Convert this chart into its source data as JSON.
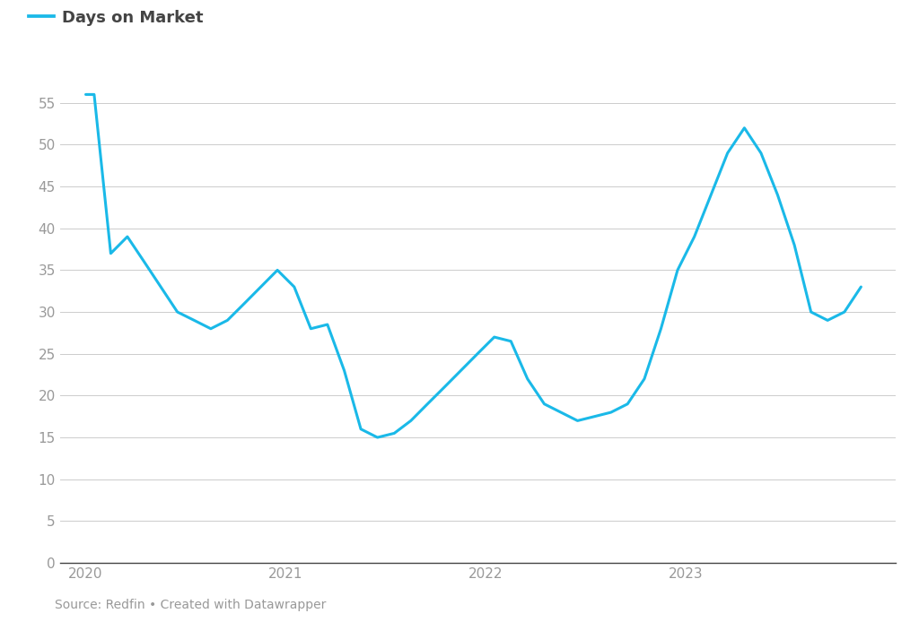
{
  "legend_label": "Days on Market",
  "line_color": "#1ab9e8",
  "background_color": "#ffffff",
  "grid_color": "#cccccc",
  "axis_color": "#444444",
  "tick_color": "#999999",
  "source_text": "Source: Redfin • Created with Datawrapper",
  "ylim": [
    0,
    58
  ],
  "yticks": [
    0,
    5,
    10,
    15,
    20,
    25,
    30,
    35,
    40,
    45,
    50,
    55
  ],
  "x_values": [
    2020.0,
    2020.042,
    2020.125,
    2020.208,
    2020.292,
    2020.375,
    2020.458,
    2020.542,
    2020.625,
    2020.708,
    2020.792,
    2020.875,
    2020.958,
    2021.042,
    2021.125,
    2021.208,
    2021.292,
    2021.375,
    2021.458,
    2021.542,
    2021.625,
    2021.708,
    2021.792,
    2021.875,
    2021.958,
    2022.042,
    2022.125,
    2022.208,
    2022.292,
    2022.375,
    2022.458,
    2022.542,
    2022.625,
    2022.708,
    2022.792,
    2022.875,
    2022.958,
    2023.042,
    2023.125,
    2023.208,
    2023.292,
    2023.375,
    2023.458,
    2023.542,
    2023.625,
    2023.708,
    2023.792,
    2023.875
  ],
  "y_values": [
    56,
    56,
    37,
    39,
    36,
    33,
    30,
    29,
    28,
    29,
    31,
    33,
    35,
    33,
    28,
    28.5,
    23,
    16,
    15,
    15.5,
    17,
    19,
    21,
    23,
    25,
    27,
    26.5,
    22,
    19,
    18,
    17,
    17.5,
    18,
    19,
    22,
    28,
    35,
    39,
    44,
    49,
    52,
    49,
    44,
    38,
    30,
    29,
    30,
    33
  ],
  "xlim": [
    2019.87,
    2024.05
  ],
  "xtick_positions": [
    2020,
    2021,
    2022,
    2023
  ],
  "xtick_labels": [
    "2020",
    "2021",
    "2022",
    "2023"
  ],
  "line_width": 2.2,
  "legend_fontsize": 13,
  "tick_fontsize": 11,
  "source_fontsize": 10
}
